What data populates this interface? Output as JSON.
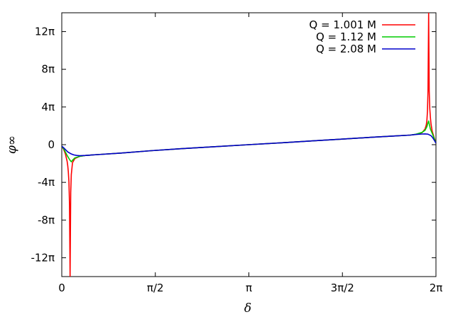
{
  "chart_data": {
    "type": "line",
    "title": "",
    "xlabel": "δ",
    "ylabel": "φ∞",
    "xlim": [
      0,
      6.2832
    ],
    "ylim": [
      -43.98,
      43.98
    ],
    "x_ticks": [
      {
        "value": 0,
        "label": "0"
      },
      {
        "value": 1.5708,
        "label": "π/2"
      },
      {
        "value": 3.1416,
        "label": "π"
      },
      {
        "value": 4.7124,
        "label": "3π/2"
      },
      {
        "value": 6.2832,
        "label": "2π"
      }
    ],
    "y_ticks": [
      {
        "value": 37.699,
        "label": "12π"
      },
      {
        "value": 25.133,
        "label": "8π"
      },
      {
        "value": 12.566,
        "label": "4π"
      },
      {
        "value": 0,
        "label": "0"
      },
      {
        "value": -12.566,
        "label": "-4π"
      },
      {
        "value": -25.133,
        "label": "-8π"
      },
      {
        "value": -37.699,
        "label": "-12π"
      }
    ],
    "legend_position": "top-right",
    "series": [
      {
        "name": "Q = 1.001 M",
        "color": "#ff0000",
        "x": [
          0.0,
          0.03,
          0.06,
          0.09,
          0.1,
          0.11,
          0.12,
          0.13,
          0.14,
          0.15,
          0.16,
          0.18,
          0.22,
          0.3,
          0.4,
          0.6,
          1.0,
          1.5,
          2.0,
          2.5,
          3.1416,
          3.7,
          4.2,
          4.7,
          5.2,
          5.6,
          5.85,
          5.95,
          6.05,
          6.1,
          6.12,
          6.13,
          6.14,
          6.15,
          6.16,
          6.17,
          6.18,
          6.19,
          6.2,
          6.22,
          6.25,
          6.2832
        ],
        "y": [
          -0.5,
          -1.5,
          -3.0,
          -5.5,
          -7.0,
          -9.0,
          -12.5,
          -20.0,
          -44.0,
          -16.0,
          -10.0,
          -6.0,
          -4.6,
          -3.9,
          -3.6,
          -3.3,
          -2.8,
          -2.0,
          -1.35,
          -0.75,
          0.0,
          0.65,
          1.25,
          1.85,
          2.45,
          2.9,
          3.2,
          3.45,
          4.0,
          5.2,
          6.5,
          8.0,
          11.0,
          18.0,
          44.0,
          18.0,
          12.0,
          9.0,
          7.0,
          4.5,
          2.5,
          0.5
        ]
      },
      {
        "name": "Q = 1.12 M",
        "color": "#00cc00",
        "x": [
          0.0,
          0.03,
          0.06,
          0.09,
          0.12,
          0.14,
          0.16,
          0.18,
          0.22,
          0.3,
          0.4,
          0.6,
          1.0,
          1.5,
          2.0,
          2.5,
          3.1416,
          3.7,
          4.2,
          4.7,
          5.2,
          5.6,
          5.85,
          5.95,
          6.05,
          6.1,
          6.13,
          6.15,
          6.16,
          6.17,
          6.19,
          6.22,
          6.25,
          6.2832
        ],
        "y": [
          -0.5,
          -1.3,
          -2.4,
          -3.6,
          -4.6,
          -5.2,
          -5.7,
          -5.2,
          -4.4,
          -3.9,
          -3.6,
          -3.3,
          -2.8,
          -2.0,
          -1.35,
          -0.75,
          0.0,
          0.65,
          1.25,
          1.85,
          2.45,
          2.9,
          3.2,
          3.5,
          4.1,
          4.8,
          6.0,
          7.3,
          7.9,
          7.0,
          5.2,
          3.8,
          2.3,
          0.5
        ]
      },
      {
        "name": "Q = 2.08 M",
        "color": "#0000cc",
        "x": [
          0.0,
          0.03,
          0.06,
          0.1,
          0.15,
          0.2,
          0.25,
          0.3,
          0.4,
          0.6,
          1.0,
          1.5,
          2.0,
          2.5,
          3.1416,
          3.7,
          4.2,
          4.7,
          5.2,
          5.6,
          5.85,
          5.95,
          6.05,
          6.1,
          6.15,
          6.2,
          6.23,
          6.26,
          6.2832
        ],
        "y": [
          -0.5,
          -1.0,
          -1.6,
          -2.4,
          -3.0,
          -3.4,
          -3.6,
          -3.7,
          -3.6,
          -3.3,
          -2.8,
          -2.0,
          -1.35,
          -0.75,
          0.0,
          0.65,
          1.25,
          1.85,
          2.45,
          2.9,
          3.2,
          3.4,
          3.55,
          3.6,
          3.5,
          3.0,
          2.3,
          1.3,
          0.5
        ]
      }
    ]
  }
}
